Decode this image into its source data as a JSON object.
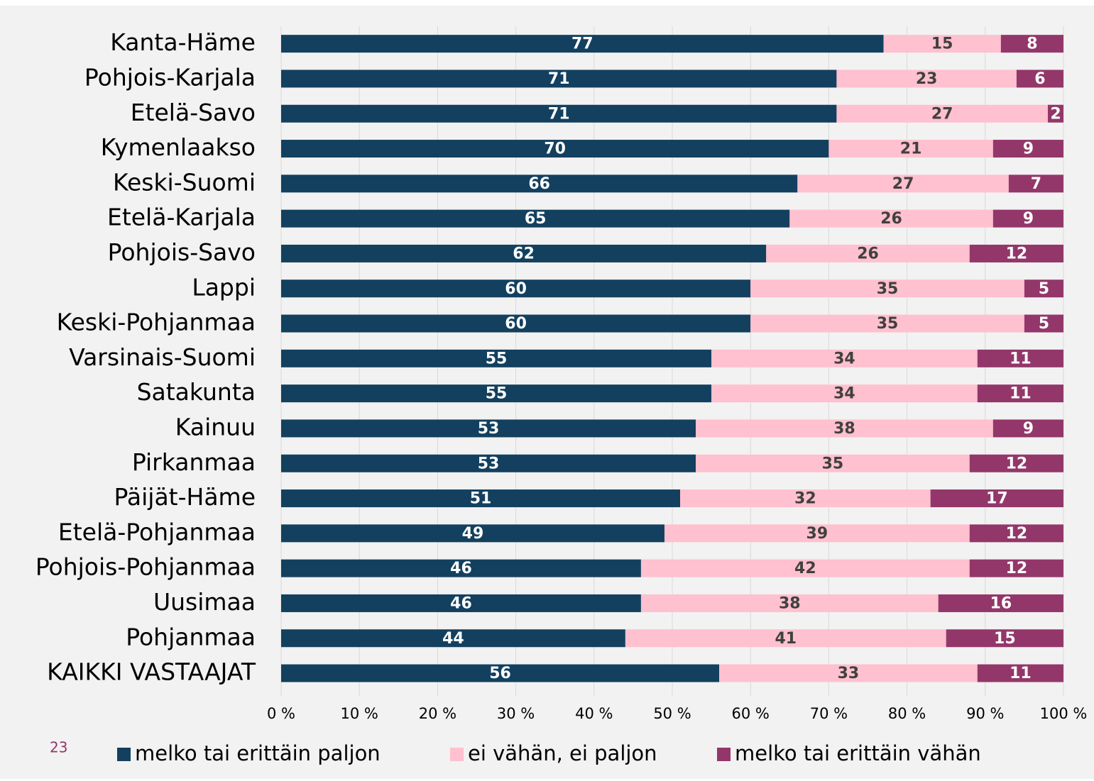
{
  "chart_data": {
    "type": "stacked-barh",
    "categories": [
      "Kanta-Häme",
      "Pohjois-Karjala",
      "Etelä-Savo",
      "Kymenlaakso",
      "Keski-Suomi",
      "Etelä-Karjala",
      "Pohjois-Savo",
      "Lappi",
      "Keski-Pohjanmaa",
      "Varsinais-Suomi",
      "Satakunta",
      "Kainuu",
      "Pirkanmaa",
      "Päijät-Häme",
      "Etelä-Pohjanmaa",
      "Pohjois-Pohjanmaa",
      "Uusimaa",
      "Pohjanmaa",
      "KAIKKI VASTAAJAT"
    ],
    "series": [
      {
        "name": "melko tai erittäin paljon",
        "color": "#13405f",
        "label_color": "#ffffff",
        "values": [
          77,
          71,
          71,
          70,
          66,
          65,
          62,
          60,
          60,
          55,
          55,
          53,
          53,
          51,
          49,
          46,
          46,
          44,
          56
        ]
      },
      {
        "name": "ei vähän, ei paljon",
        "color": "#ffc0cf",
        "label_color": "#404040",
        "values": [
          15,
          23,
          27,
          21,
          27,
          26,
          26,
          35,
          35,
          34,
          34,
          38,
          35,
          32,
          39,
          42,
          38,
          41,
          33
        ]
      },
      {
        "name": "melko tai erittäin vähän",
        "color": "#93376a",
        "label_color": "#ffffff",
        "values": [
          8,
          6,
          2,
          9,
          7,
          9,
          12,
          5,
          5,
          11,
          11,
          9,
          12,
          17,
          12,
          12,
          16,
          15,
          11
        ]
      }
    ],
    "xlim": [
      0,
      100
    ],
    "xticks": [
      {
        "value": 0,
        "label": "0 %"
      },
      {
        "value": 10,
        "label": "10 %"
      },
      {
        "value": 20,
        "label": "20 %"
      },
      {
        "value": 30,
        "label": "30 %"
      },
      {
        "value": 40,
        "label": "40 %"
      },
      {
        "value": 50,
        "label": "50 %"
      },
      {
        "value": 60,
        "label": "60 %"
      },
      {
        "value": 70,
        "label": "70 %"
      },
      {
        "value": 80,
        "label": "80 %"
      },
      {
        "value": 90,
        "label": "90 %"
      },
      {
        "value": 100,
        "label": "100 %"
      }
    ],
    "grid": true,
    "legend": "bottom",
    "page_number": "23"
  }
}
